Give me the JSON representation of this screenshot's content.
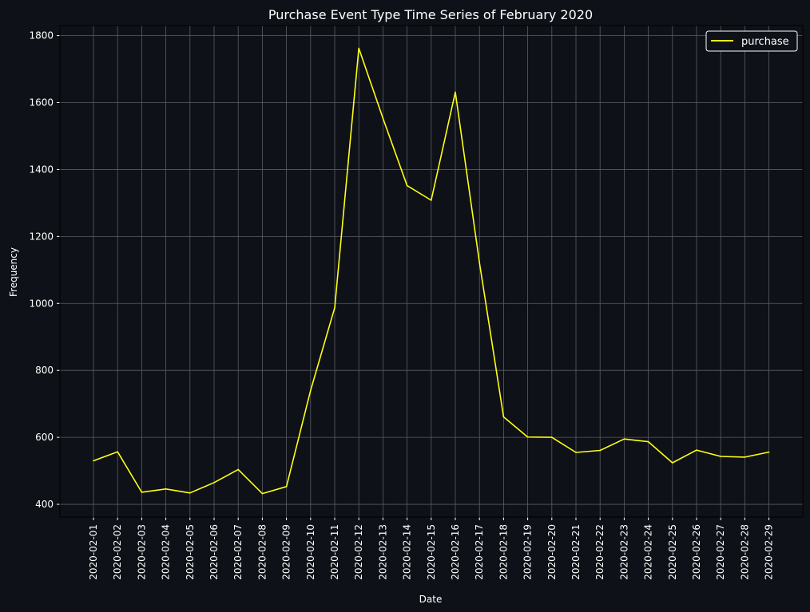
{
  "chart_data": {
    "type": "line",
    "title": "Purchase Event Type Time Series of February 2020",
    "xlabel": "Date",
    "ylabel": "Frequency",
    "categories": [
      "2020-02-01",
      "2020-02-02",
      "2020-02-03",
      "2020-02-04",
      "2020-02-05",
      "2020-02-06",
      "2020-02-07",
      "2020-02-08",
      "2020-02-09",
      "2020-02-10",
      "2020-02-11",
      "2020-02-12",
      "2020-02-13",
      "2020-02-14",
      "2020-02-15",
      "2020-02-16",
      "2020-02-17",
      "2020-02-18",
      "2020-02-19",
      "2020-02-20",
      "2020-02-21",
      "2020-02-22",
      "2020-02-23",
      "2020-02-24",
      "2020-02-25",
      "2020-02-26",
      "2020-02-27",
      "2020-02-28",
      "2020-02-29"
    ],
    "series": [
      {
        "name": "purchase",
        "color": "#ffff14",
        "values": [
          530,
          557,
          436,
          446,
          434,
          465,
          504,
          432,
          453,
          740,
          987,
          1762,
          1553,
          1352,
          1308,
          1631,
          1122,
          661,
          601,
          600,
          555,
          561,
          595,
          587,
          524,
          562,
          543,
          541,
          556
        ]
      }
    ],
    "ylim": [
      362,
      1830
    ],
    "yticks": [
      400,
      600,
      800,
      1000,
      1200,
      1400,
      1600,
      1800
    ],
    "grid": true,
    "legend": "top-right",
    "colors": {
      "background": "#0e1117",
      "text": "#ffffff",
      "grid": "#5a5d63"
    }
  }
}
